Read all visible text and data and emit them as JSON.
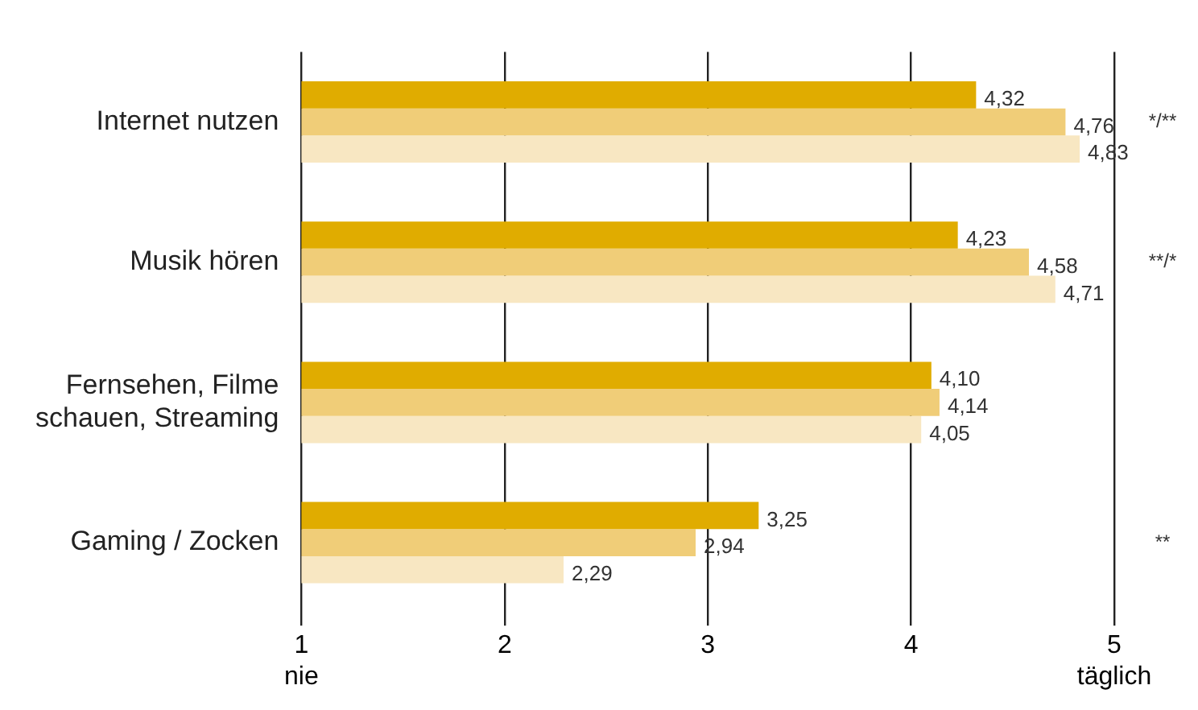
{
  "chart_data": {
    "type": "bar",
    "orientation": "horizontal",
    "categories": [
      "Internet nutzen",
      "Musik hören",
      "Fernsehen, Filme schauen, Streaming",
      "Gaming / Zocken"
    ],
    "series": [
      {
        "color": "#e0ac00",
        "values": [
          4.32,
          4.23,
          4.1,
          3.25
        ],
        "value_labels": [
          "4,32",
          "4,23",
          "4,10",
          "3,25"
        ]
      },
      {
        "color": "#f0cd78",
        "values": [
          4.76,
          4.58,
          4.14,
          2.94
        ],
        "value_labels": [
          "4,76",
          "4,58",
          "4,14",
          "2,94"
        ]
      },
      {
        "color": "#f8e7c2",
        "values": [
          4.83,
          4.71,
          4.05,
          2.29
        ],
        "value_labels": [
          "4,83",
          "4,71",
          "4,05",
          "2,29"
        ]
      }
    ],
    "xlim": [
      1,
      5
    ],
    "xticks": [
      {
        "value": 1,
        "label": "1\nnie"
      },
      2,
      3,
      4,
      {
        "value": 5,
        "label": "5\ntäglich"
      }
    ],
    "grid": "x",
    "legend": false,
    "annotations": [
      "*/**",
      "**/*",
      "**"
    ]
  }
}
